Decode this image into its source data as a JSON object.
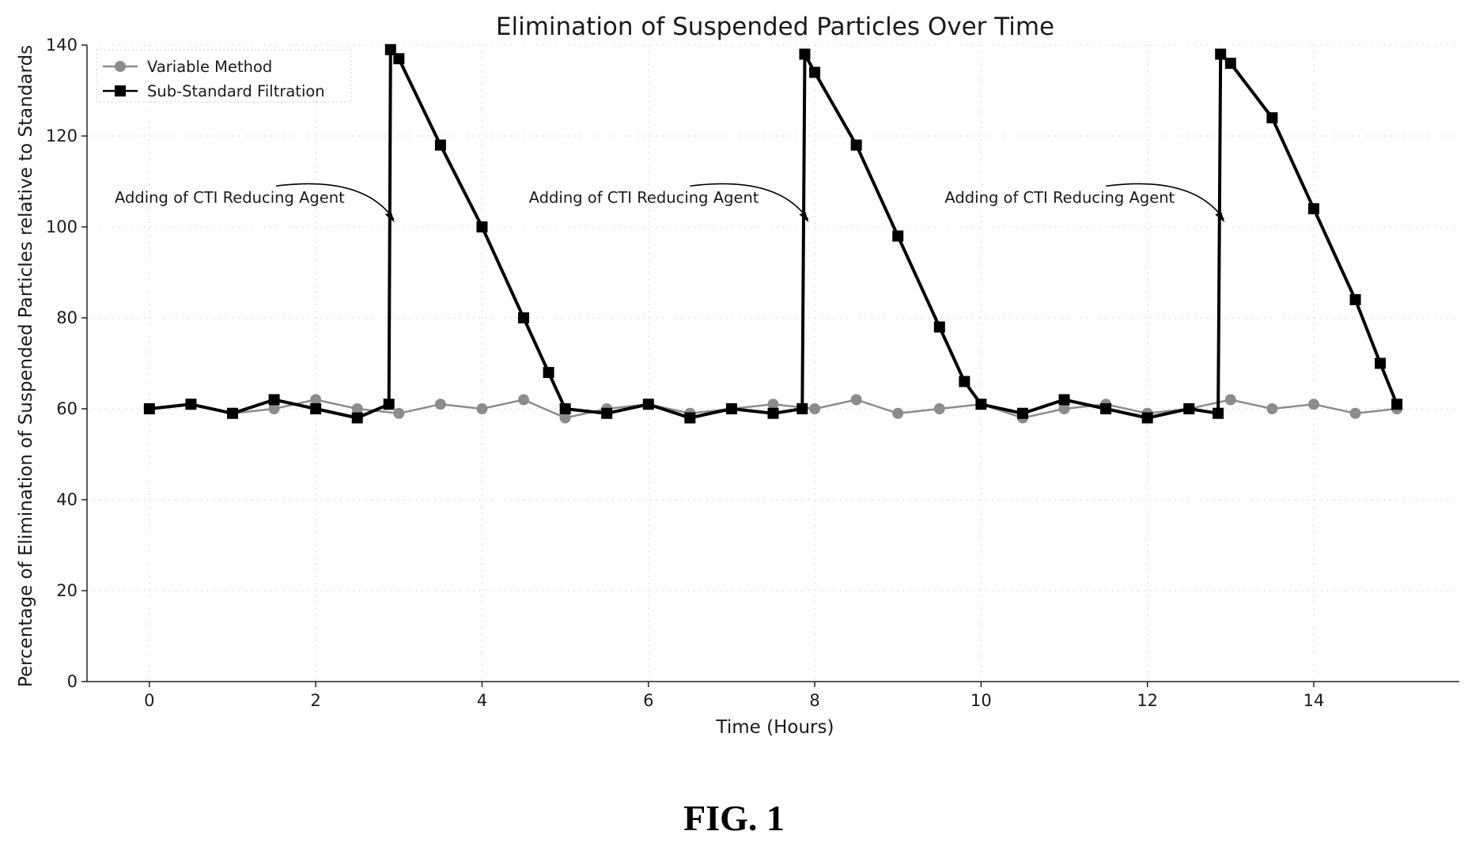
{
  "figure_label": "FIG. 1",
  "chart_data": {
    "type": "line",
    "title": "Elimination of Suspended Particles Over Time",
    "xlabel": "Time (Hours)",
    "ylabel": "Percentage of Elimination of Suspended Particles relative to Standards",
    "xlim": [
      -0.75,
      15.75
    ],
    "ylim": [
      0,
      140
    ],
    "x_ticks": [
      0,
      2,
      4,
      6,
      8,
      10,
      12,
      14
    ],
    "y_ticks": [
      0,
      20,
      40,
      60,
      80,
      100,
      120,
      140
    ],
    "grid": "dotted",
    "legend_position": "top-left",
    "colors": {
      "variable_method": "#8c8c8c",
      "sub_standard": "#000000"
    },
    "series": [
      {
        "name": "Variable Method",
        "marker": "circle",
        "color": "#8c8c8c",
        "x": [
          0,
          0.5,
          1,
          1.5,
          2,
          2.5,
          3,
          3.5,
          4,
          4.5,
          5,
          5.5,
          6,
          6.5,
          7,
          7.5,
          8,
          8.5,
          9,
          9.5,
          10,
          10.5,
          11,
          11.5,
          12,
          12.5,
          13,
          13.5,
          14,
          14.5,
          15
        ],
        "values": [
          60,
          61,
          59,
          60,
          62,
          60,
          59,
          61,
          60,
          62,
          58,
          60,
          61,
          59,
          60,
          61,
          60,
          62,
          59,
          60,
          61,
          58,
          60,
          61,
          59,
          60,
          62,
          60,
          61,
          59,
          60
        ]
      },
      {
        "name": "Sub-Standard Filtration",
        "marker": "square",
        "color": "#000000",
        "x": [
          0,
          0.5,
          1,
          1.5,
          2,
          2.5,
          2.88,
          2.9,
          3.0,
          3.5,
          4.0,
          4.5,
          4.8,
          5.0,
          5.5,
          6.0,
          6.5,
          7.0,
          7.5,
          7.85,
          7.88,
          8.0,
          8.5,
          9.0,
          9.5,
          9.8,
          10.0,
          10.5,
          11.0,
          11.5,
          12.0,
          12.5,
          12.85,
          12.88,
          13.0,
          13.5,
          14.0,
          14.5,
          14.8,
          15.0
        ],
        "values": [
          60,
          61,
          59,
          62,
          60,
          58,
          61,
          139,
          137,
          118,
          100,
          80,
          68,
          60,
          59,
          61,
          58,
          60,
          59,
          60,
          138,
          134,
          118,
          98,
          78,
          66,
          61,
          59,
          62,
          60,
          58,
          60,
          59,
          138,
          136,
          124,
          104,
          84,
          70,
          61
        ]
      }
    ],
    "annotations": [
      {
        "text": "Adding of CTI Reducing Agent",
        "x": 2.9,
        "y": 101
      },
      {
        "text": "Adding of CTI Reducing Agent",
        "x": 7.88,
        "y": 101
      },
      {
        "text": "Adding of CTI Reducing Agent",
        "x": 12.88,
        "y": 101
      }
    ]
  }
}
